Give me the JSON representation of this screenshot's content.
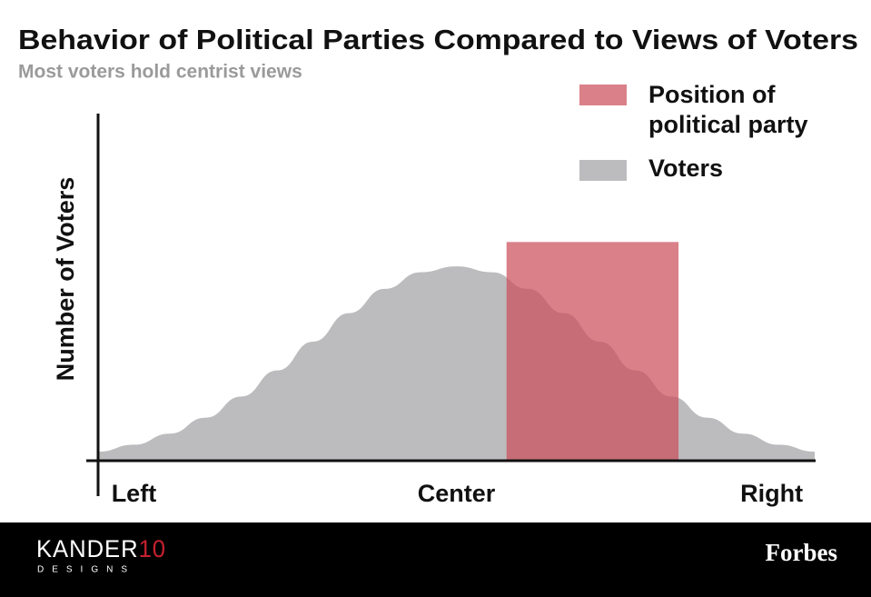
{
  "chart_data": {
    "type": "area",
    "title": "Behavior of Political Parties Compared to Views of Voters",
    "subtitle": "Most voters hold centrist views",
    "ylabel": "Number of Voters",
    "xlim": [
      0,
      100
    ],
    "ylim": [
      0,
      100
    ],
    "xticks": [
      {
        "value": 5,
        "label": "Left"
      },
      {
        "value": 50,
        "label": "Center"
      },
      {
        "value": 94,
        "label": "Right"
      }
    ],
    "x": [
      0,
      5,
      10,
      15,
      20,
      25,
      30,
      35,
      40,
      45,
      50,
      55,
      60,
      65,
      70,
      75,
      80,
      85,
      90,
      95,
      100
    ],
    "series": [
      {
        "name": "Voters",
        "color": "#bcbcbe",
        "values": [
          2.6,
          4.6,
          7.8,
          12.4,
          18.5,
          26,
          34.3,
          42.5,
          49.5,
          54.3,
          56,
          54.3,
          49.5,
          42.5,
          34.3,
          26,
          18.5,
          12.4,
          7.8,
          4.6,
          2.6
        ]
      }
    ],
    "party": {
      "name": "Position of political party",
      "color": "#cc4f5b",
      "xrange": [
        57,
        81
      ],
      "value": 63
    },
    "legend": "top-right"
  },
  "footer": {
    "logo_word": "KANDER",
    "logo_number": "10",
    "logo_tagline": "DESIGNS",
    "publisher": "Forbes"
  }
}
